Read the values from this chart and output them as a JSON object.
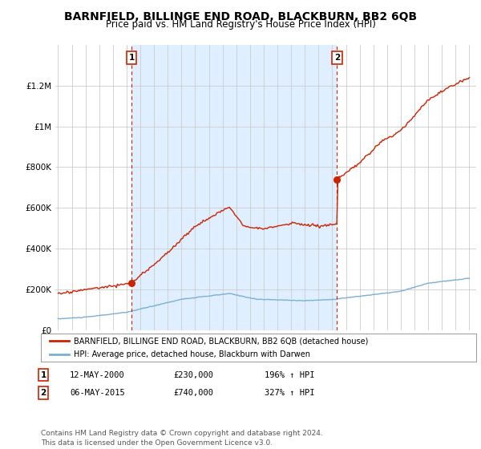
{
  "title": "BARNFIELD, BILLINGE END ROAD, BLACKBURN, BB2 6QB",
  "subtitle": "Price paid vs. HM Land Registry's House Price Index (HPI)",
  "title_fontsize": 10,
  "subtitle_fontsize": 8.5,
  "ylim": [
    0,
    1400000
  ],
  "yticks": [
    0,
    200000,
    400000,
    600000,
    800000,
    1000000,
    1200000
  ],
  "ytick_labels": [
    "£0",
    "£200K",
    "£400K",
    "£600K",
    "£800K",
    "£1M",
    "£1.2M"
  ],
  "xlim_start": 1994.8,
  "xlim_end": 2025.5,
  "grid_color": "#cccccc",
  "plot_bg": "#ffffff",
  "shade_color": "#ddeeff",
  "fig_bg": "#ffffff",
  "red_color": "#cc2200",
  "blue_color": "#7ab0d4",
  "sale1_year": 2000.37,
  "sale1_price": 230000,
  "sale2_year": 2015.35,
  "sale2_price": 740000,
  "legend_red_label": "BARNFIELD, BILLINGE END ROAD, BLACKBURN, BB2 6QB (detached house)",
  "legend_blue_label": "HPI: Average price, detached house, Blackburn with Darwen",
  "annot1_label": "1",
  "annot2_label": "2",
  "table_row1": [
    "1",
    "12-MAY-2000",
    "£230,000",
    "196% ↑ HPI"
  ],
  "table_row2": [
    "2",
    "06-MAY-2015",
    "£740,000",
    "327% ↑ HPI"
  ],
  "footer": "Contains HM Land Registry data © Crown copyright and database right 2024.\nThis data is licensed under the Open Government Licence v3.0.",
  "footer_fontsize": 6.5
}
